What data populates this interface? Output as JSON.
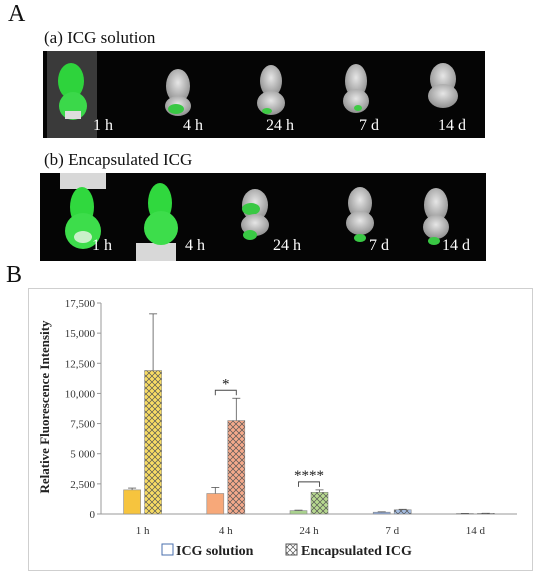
{
  "panel_a": {
    "letter": "A",
    "row_a": {
      "title": "(a) ICG solution",
      "labels": [
        "1 h",
        "4 h",
        "24 h",
        "7 d",
        "14 d"
      ]
    },
    "row_b": {
      "title": "(b) Encapsulated ICG",
      "labels": [
        "1 h",
        "4 h",
        "24 h",
        "7 d",
        "14 d"
      ]
    }
  },
  "panel_b": {
    "letter": "B"
  },
  "chart_data": {
    "type": "bar",
    "categories": [
      "1 h",
      "4 h",
      "24 h",
      "7 d",
      "14 d"
    ],
    "ylabel": "Relative Fluorescence Intensity",
    "xlabel": "",
    "ylim": [
      0,
      17500
    ],
    "yticks": [
      0,
      2500,
      5000,
      7500,
      10000,
      12500,
      15000,
      17500
    ],
    "ytick_labels": [
      "0",
      "2,500",
      "5 000",
      "7,500",
      "10,000",
      "12,500",
      "15,000",
      "17,500"
    ],
    "grid": false,
    "legend_position": "bottom",
    "series": [
      {
        "name": "ICG solution",
        "values": [
          2000,
          1700,
          280,
          150,
          40
        ],
        "errors": [
          150,
          500,
          40,
          30,
          10
        ],
        "colors": [
          "#f6c43e",
          "#f7a879",
          "#a9d18e",
          "#8eaadb",
          "#bdc7e0"
        ]
      },
      {
        "name": "Encapsulated ICG",
        "values": [
          11900,
          7750,
          1800,
          350,
          50
        ],
        "errors": [
          4700,
          1850,
          200,
          40,
          10
        ],
        "colors": [
          "#f8dc64",
          "#f4a98b",
          "#b7d98f",
          "#a4bde2",
          "#c5cde0"
        ],
        "pattern": "crosshatch"
      }
    ],
    "significance": [
      {
        "category": "4 h",
        "label": "*"
      },
      {
        "category": "24 h",
        "label": "****"
      }
    ]
  }
}
